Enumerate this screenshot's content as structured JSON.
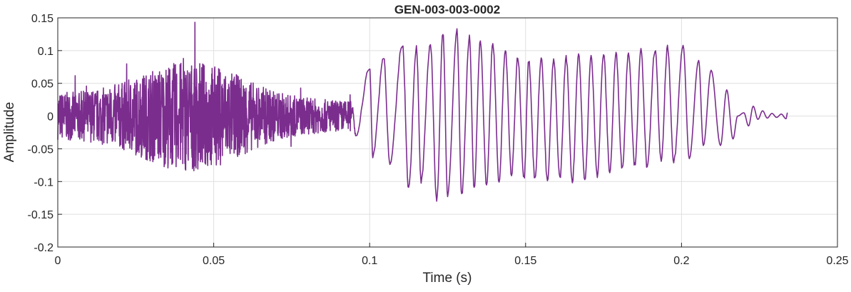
{
  "chart_data": {
    "type": "line",
    "title": "GEN-003-003-0002",
    "xlabel": "Time (s)",
    "ylabel": "Amplitude",
    "xlim": [
      0,
      0.25
    ],
    "ylim": [
      -0.2,
      0.15
    ],
    "grid": true,
    "line_color": "#7b2d8e",
    "x_ticks": [
      {
        "value": 0,
        "label": "0"
      },
      {
        "value": 0.05,
        "label": "0.05"
      },
      {
        "value": 0.1,
        "label": "0.1"
      },
      {
        "value": 0.15,
        "label": "0.15"
      },
      {
        "value": 0.2,
        "label": "0.2"
      },
      {
        "value": 0.25,
        "label": "0.25"
      }
    ],
    "y_ticks": [
      {
        "value": 0.15,
        "label": "0.15"
      },
      {
        "value": 0.1,
        "label": "0.1"
      },
      {
        "value": 0.05,
        "label": "0.05"
      },
      {
        "value": 0,
        "label": "0"
      },
      {
        "value": -0.05,
        "label": "-0.05"
      },
      {
        "value": -0.1,
        "label": "-0.1"
      },
      {
        "value": -0.15,
        "label": "-0.15"
      },
      {
        "value": -0.2,
        "label": "-0.2"
      }
    ],
    "series": [
      {
        "x": [
          0,
          0.094,
          0.0945,
          0.0955,
          0.1,
          0.101,
          0.1045,
          0.1065,
          0.1105,
          0.1125,
          0.115,
          0.1165,
          0.1195,
          0.1215,
          0.1235,
          0.125,
          0.128,
          0.1295,
          0.132,
          0.1335,
          0.1355,
          0.1375,
          0.1395,
          0.1415,
          0.1435,
          0.1455,
          0.1475,
          0.1495,
          0.151,
          0.153,
          0.155,
          0.157,
          0.159,
          0.161,
          0.163,
          0.165,
          0.167,
          0.169,
          0.171,
          0.173,
          0.175,
          0.177,
          0.179,
          0.181,
          0.183,
          0.185,
          0.187,
          0.189,
          0.1915,
          0.1935,
          0.1955,
          0.1975,
          0.2005,
          0.2025,
          0.2055,
          0.207,
          0.2095,
          0.2125,
          0.2145,
          0.2165,
          0.218,
          0.22,
          0.2215,
          0.223,
          0.2245,
          0.226,
          0.2275,
          0.229,
          0.2305,
          0.232,
          0.2335,
          0.234
        ],
        "y": [
          0,
          0,
          0.01,
          -0.03,
          0.075,
          -0.06,
          0.09,
          -0.075,
          0.11,
          -0.11,
          0.105,
          -0.1,
          0.11,
          -0.13,
          0.128,
          -0.12,
          0.13,
          -0.12,
          0.12,
          -0.11,
          0.115,
          -0.105,
          0.11,
          -0.1,
          0.1,
          -0.09,
          0.09,
          -0.095,
          0.085,
          -0.095,
          0.09,
          -0.1,
          0.085,
          -0.095,
          0.09,
          -0.1,
          0.095,
          -0.1,
          0.09,
          -0.09,
          0.095,
          -0.085,
          0.095,
          -0.08,
          0.098,
          -0.075,
          0.1,
          -0.08,
          0.102,
          -0.07,
          0.105,
          -0.07,
          0.108,
          -0.065,
          0.085,
          -0.045,
          0.07,
          -0.045,
          0.04,
          -0.035,
          0.0,
          0.005,
          -0.015,
          0.015,
          -0.005,
          0.008,
          -0.003,
          0.004,
          -0.002,
          0.003,
          -0.004,
          0.005
        ]
      }
    ]
  }
}
